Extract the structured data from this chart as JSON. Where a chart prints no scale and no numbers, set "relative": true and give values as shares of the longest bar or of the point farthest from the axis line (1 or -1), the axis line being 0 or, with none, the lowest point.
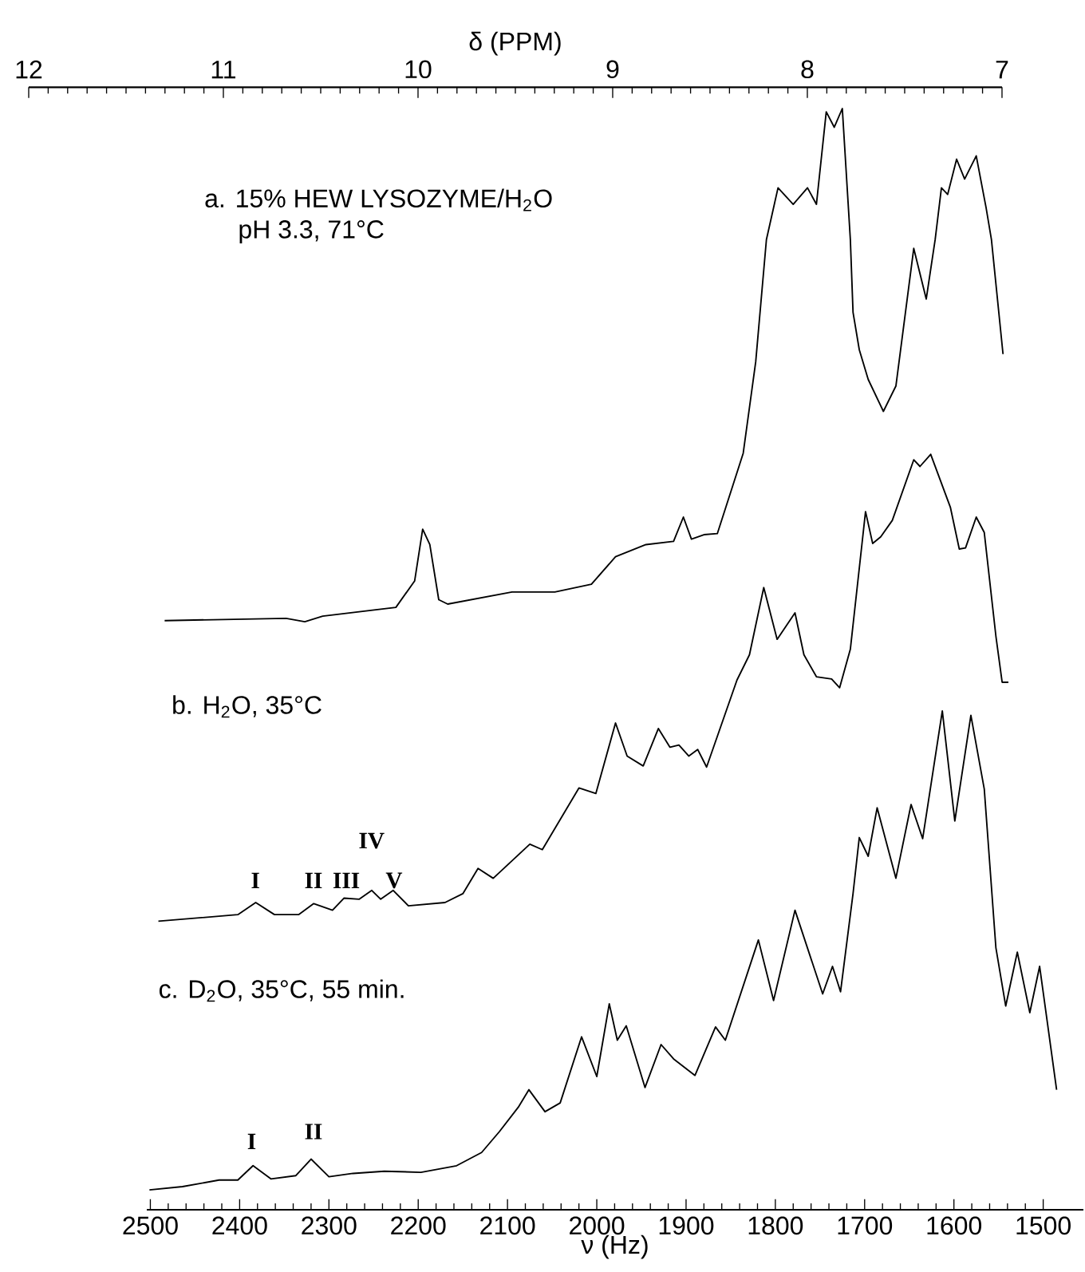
{
  "chart_data": {
    "type": "line",
    "relative": true,
    "xlabel": "ν (Hz)",
    "x2label": "δ (PPM)",
    "xlim": [
      2504,
      1455
    ],
    "xticks": [
      2500,
      2400,
      2300,
      2200,
      2100,
      2000,
      1900,
      1800,
      1700,
      1600,
      1500
    ],
    "x2lim": [
      12,
      7
    ],
    "x2ticks": [
      12,
      11,
      10,
      9,
      8,
      7
    ],
    "series": [
      {
        "color": "#000000",
        "x": [
          2484,
          2348,
          2327,
          2307,
          2225,
          2204,
          2195,
          2187,
          2177,
          2167,
          2095,
          2047,
          2006,
          1979,
          1945,
          1914,
          1903,
          1894,
          1880,
          1865,
          1836,
          1822,
          1810,
          1797,
          1780,
          1764,
          1754,
          1743,
          1734,
          1725,
          1716,
          1713,
          1706,
          1696,
          1679,
          1665,
          1645,
          1631,
          1621,
          1614,
          1607,
          1597,
          1588,
          1575,
          1564,
          1558,
          1545
        ],
        "values": [
          0.535,
          0.537,
          0.534,
          0.539,
          0.547,
          0.571,
          0.618,
          0.604,
          0.554,
          0.55,
          0.561,
          0.561,
          0.568,
          0.593,
          0.604,
          0.607,
          0.629,
          0.609,
          0.613,
          0.614,
          0.687,
          0.77,
          0.881,
          0.928,
          0.913,
          0.928,
          0.913,
          0.997,
          0.983,
          1.0,
          0.881,
          0.815,
          0.781,
          0.754,
          0.725,
          0.748,
          0.873,
          0.827,
          0.881,
          0.928,
          0.922,
          0.954,
          0.936,
          0.957,
          0.91,
          0.881,
          0.777
        ]
      },
      {
        "color": "#000000",
        "x": [
          2491,
          2402,
          2382,
          2361,
          2334,
          2317,
          2296,
          2283,
          2266,
          2252,
          2242,
          2228,
          2211,
          2170,
          2150,
          2133,
          2116,
          2075,
          2061,
          2020,
          2001,
          1979,
          1966,
          1948,
          1931,
          1918,
          1908,
          1897,
          1887,
          1877,
          1843,
          1829,
          1813,
          1798,
          1778,
          1768,
          1754,
          1737,
          1728,
          1716,
          1699,
          1691,
          1682,
          1669,
          1645,
          1638,
          1626,
          1604,
          1594,
          1587,
          1575,
          1566,
          1553,
          1546,
          1539
        ],
        "values": [
          0.262,
          0.268,
          0.279,
          0.268,
          0.268,
          0.278,
          0.272,
          0.283,
          0.282,
          0.29,
          0.282,
          0.29,
          0.276,
          0.279,
          0.287,
          0.31,
          0.301,
          0.332,
          0.327,
          0.383,
          0.378,
          0.442,
          0.412,
          0.403,
          0.437,
          0.42,
          0.422,
          0.412,
          0.418,
          0.402,
          0.481,
          0.504,
          0.565,
          0.518,
          0.542,
          0.504,
          0.484,
          0.482,
          0.474,
          0.509,
          0.634,
          0.605,
          0.611,
          0.626,
          0.681,
          0.675,
          0.686,
          0.638,
          0.6,
          0.601,
          0.629,
          0.615,
          0.521,
          0.479,
          0.479
        ]
      },
      {
        "color": "#000000",
        "x": [
          2501,
          2464,
          2423,
          2402,
          2385,
          2365,
          2337,
          2320,
          2300,
          2273,
          2238,
          2197,
          2157,
          2129,
          2109,
          2088,
          2076,
          2058,
          2041,
          2017,
          2000,
          1986,
          1977,
          1967,
          1946,
          1928,
          1914,
          1890,
          1867,
          1856,
          1819,
          1802,
          1778,
          1747,
          1736,
          1727,
          1713,
          1706,
          1696,
          1686,
          1665,
          1648,
          1635,
          1613,
          1599,
          1581,
          1566,
          1553,
          1542,
          1529,
          1515,
          1504,
          1485
        ],
        "values": [
          0.018,
          0.021,
          0.027,
          0.027,
          0.04,
          0.028,
          0.031,
          0.046,
          0.03,
          0.033,
          0.035,
          0.034,
          0.04,
          0.052,
          0.071,
          0.093,
          0.109,
          0.089,
          0.097,
          0.157,
          0.121,
          0.187,
          0.154,
          0.167,
          0.111,
          0.15,
          0.137,
          0.122,
          0.166,
          0.154,
          0.245,
          0.19,
          0.272,
          0.196,
          0.221,
          0.198,
          0.287,
          0.338,
          0.321,
          0.365,
          0.301,
          0.368,
          0.337,
          0.453,
          0.353,
          0.449,
          0.382,
          0.238,
          0.185,
          0.234,
          0.179,
          0.221,
          0.109
        ]
      }
    ],
    "annotations": [
      "a. 15% HEW LYSOZYME/H$_{2}$O",
      "pH 3.3, 71°C",
      "b. H$_{2}$O, 35°C",
      "c. D$_{2}$O, 35°C, 55 min.",
      "I",
      "II",
      "III",
      "IV",
      "V",
      "I",
      "II"
    ]
  }
}
